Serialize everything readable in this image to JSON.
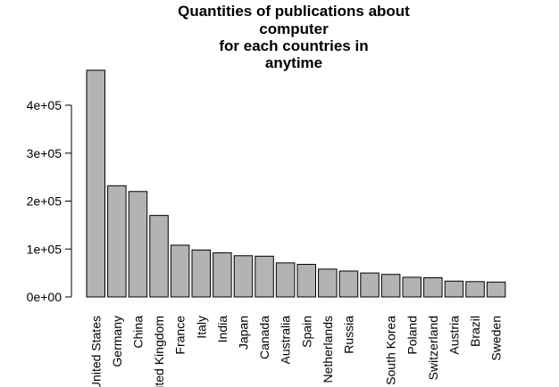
{
  "chart_data": {
    "type": "bar",
    "title_lines": [
      "Quantities of publications about",
      "computer",
      "for each countries in",
      "anytime"
    ],
    "categories": [
      "United States",
      "Germany",
      "China",
      "United Kingdom",
      "France",
      "Italy",
      "India",
      "Japan",
      "Canada",
      "Australia",
      "Spain",
      "Netherlands",
      "Russia",
      "",
      "South Korea",
      "Poland",
      "Switzerland",
      "Austria",
      "Brazil",
      "Sweden"
    ],
    "values": [
      473000,
      232000,
      220000,
      170000,
      108000,
      98000,
      92000,
      86000,
      85000,
      71000,
      68000,
      58000,
      54000,
      50000,
      47000,
      41000,
      40000,
      33000,
      32000,
      31000
    ],
    "yticks": [
      0,
      100000,
      200000,
      300000,
      400000
    ],
    "ytick_labels": [
      "0e+00",
      "1e+05",
      "2e+05",
      "3e+05",
      "4e+05"
    ],
    "bar_color": "#b3b3b3",
    "grid": false,
    "legend": "none"
  }
}
